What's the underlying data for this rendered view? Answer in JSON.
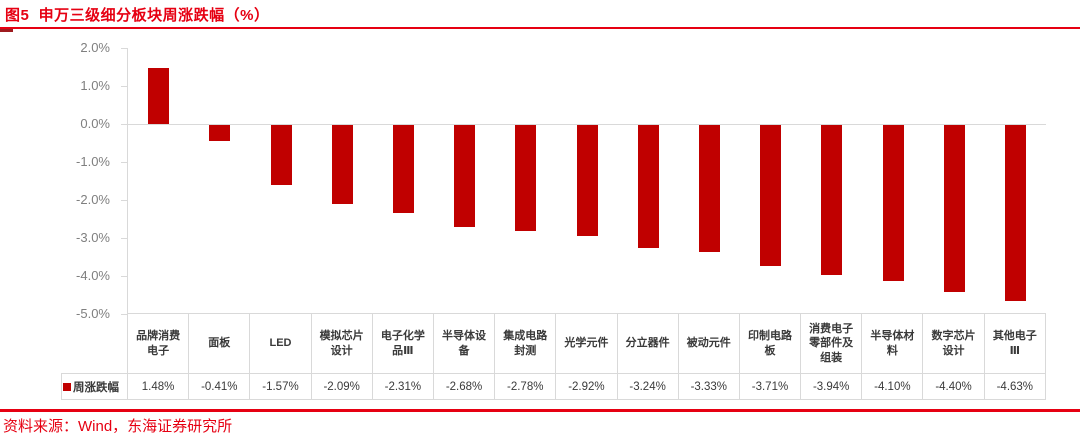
{
  "colors": {
    "accent": "#E60012",
    "accent_dark": "#9E1B1F",
    "bar": "#C00000",
    "axis_line": "#D9D9D9",
    "tick_label": "#7F7F7F",
    "table_text": "#3A3A3A"
  },
  "header": {
    "title": "图5  申万三级细分板块周涨跌幅（%）"
  },
  "footer": {
    "source": "资料来源：Wind，东海证券研究所"
  },
  "chart_data": {
    "type": "bar",
    "title": "申万三级细分板块周涨跌幅（%）",
    "series_name": "周涨跌幅",
    "categories": [
      "品牌消费电子",
      "面板",
      "LED",
      "模拟芯片设计",
      "电子化学品Ⅲ",
      "半导体设备",
      "集成电路封测",
      "光学元件",
      "分立器件",
      "被动元件",
      "印制电路板",
      "消费电子零部件及组装",
      "半导体材料",
      "数字芯片设计",
      "其他电子Ⅲ"
    ],
    "values": [
      1.48,
      -0.41,
      -1.57,
      -2.09,
      -2.31,
      -2.68,
      -2.78,
      -2.92,
      -3.24,
      -3.33,
      -3.71,
      -3.94,
      -4.1,
      -4.4,
      -4.63
    ],
    "value_labels": [
      "1.48%",
      "-0.41%",
      "-1.57%",
      "-2.09%",
      "-2.31%",
      "-2.68%",
      "-2.78%",
      "-2.92%",
      "-3.24%",
      "-3.33%",
      "-3.71%",
      "-3.94%",
      "-4.10%",
      "-4.40%",
      "-4.63%"
    ],
    "yticks": [
      2.0,
      1.0,
      0.0,
      -1.0,
      -2.0,
      -3.0,
      -4.0,
      -5.0
    ],
    "ytick_labels": [
      "2.0%",
      "1.0%",
      "0.0%",
      "-1.0%",
      "-2.0%",
      "-3.0%",
      "-4.0%",
      "-5.0%"
    ],
    "ylim": [
      -5.0,
      2.0
    ],
    "xlabel": "",
    "ylabel": "",
    "grid": false,
    "legend_position": "bottom-table",
    "bar_color": "#C00000"
  }
}
